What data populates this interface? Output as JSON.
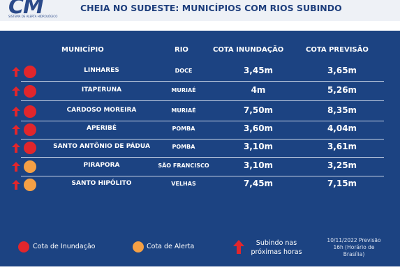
{
  "header": {
    "logo_text": "CM",
    "logo_sub": "SISTEMA DE ALERTA HIDROLÓGICO",
    "title": "CHEIA NO SUDESTE: MUNICÍPIOS COM RIOS SUBINDO"
  },
  "table": {
    "headers": {
      "municipio": "MUNICÍPIO",
      "rio": "RIO",
      "cota": "COTA INUNDAÇÃO",
      "previsao": "COTA PREVISÃO"
    },
    "rows": [
      {
        "municipio": "LINHARES",
        "rio": "DOCE",
        "cota": "3,45m",
        "previsao": "3,65m",
        "status": "red"
      },
      {
        "municipio": "ITAPERUNA",
        "rio": "MURIAÉ",
        "cota": "4m",
        "previsao": "5,26m",
        "status": "red"
      },
      {
        "municipio": "CARDOSO MOREIRA",
        "rio": "MURIAÉ",
        "cota": "7,50m",
        "previsao": "8,35m",
        "status": "red"
      },
      {
        "municipio": "APERIBÉ",
        "rio": "POMBA",
        "cota": "3,60m",
        "previsao": "4,04m",
        "status": "red"
      },
      {
        "municipio": "SANTO ANTÔNIO DE PÁDUA",
        "rio": "POMBA",
        "cota": "3,10m",
        "previsao": "3,61m",
        "status": "red"
      },
      {
        "municipio": "PIRAPORA",
        "rio": "SÃO FRANCISCO",
        "cota": "3,10m",
        "previsao": "3,25m",
        "status": "orange"
      },
      {
        "municipio": "SANTO HIPÓLITO",
        "rio": "VELHAS",
        "cota": "7,45m",
        "previsao": "7,15m",
        "status": "orange"
      }
    ]
  },
  "legend": {
    "inundacao": "Cota de Inundação",
    "alerta": "Cota de Alerta",
    "subindo_line1": "Subindo nas",
    "subindo_line2": "próximas horas",
    "date_line1": "10/11/2022 Previsão",
    "date_line2": "16h (Horário de",
    "date_line3": "Brasília)"
  },
  "colors": {
    "panel": "#1c4382",
    "red": "#e1262c",
    "orange": "#f5a045",
    "arrow": "#e1262c"
  }
}
